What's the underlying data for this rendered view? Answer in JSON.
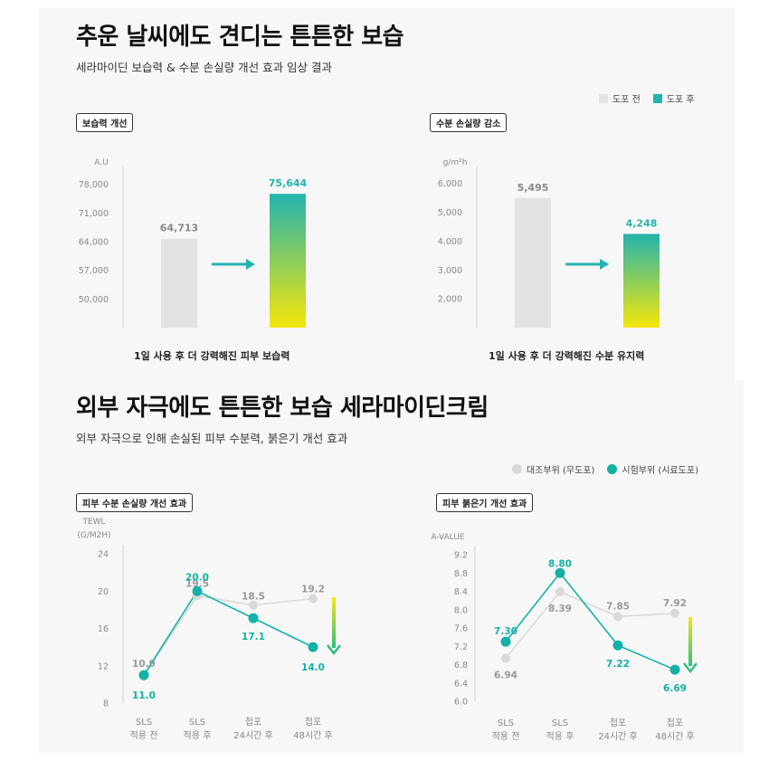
{
  "section1": {
    "title": "추운 날씨에도 견디는 튼튼한 보습",
    "subtitle": "세라마이딘 보습력 & 수분 손실량 개선 효과 임상 결과",
    "legend": {
      "before": "도포 전",
      "after": "도포 후"
    },
    "colors": {
      "before": "#e3e3e3",
      "after_top": "#23b4ae",
      "after_bottom": "#f5e60a"
    }
  },
  "section2": {
    "title": "외부 자극에도 튼튼한 보습 세라마이딘크림",
    "subtitle": "외부 자극으로 인해 손실된 피부 수분력, 붉은기 개선 효과",
    "legend": {
      "control": "대조부위 (무도포)",
      "test": "시험부위 (시료도포)"
    },
    "colors": {
      "control": "#d9d9d9",
      "test": "#13b1a5",
      "arrow_top": "#f3e61a",
      "arrow_bottom": "#2fbf7c"
    }
  },
  "chart_data": [
    {
      "type": "bar",
      "tag": "보습력 개선",
      "ylabel": "A.U",
      "yticks": [
        "78,000",
        "71,000",
        "64,000",
        "57,000",
        "50,000"
      ],
      "ylim": [
        43000,
        81000
      ],
      "categories": [
        "도포 전",
        "도포 후"
      ],
      "values": [
        64713,
        75644
      ],
      "value_labels": [
        "64,713",
        "75,644"
      ],
      "caption": "1일 사용 후 더 강력해진 피부 보습력"
    },
    {
      "type": "bar",
      "tag": "수분 손실량 감소",
      "ylabel": "g/m²h",
      "yticks": [
        "6,000",
        "5,000",
        "4,000",
        "3,000",
        "2,000"
      ],
      "ylim": [
        1000,
        6400
      ],
      "categories": [
        "도포 전",
        "도포 후"
      ],
      "values": [
        5495,
        4248
      ],
      "value_labels": [
        "5,495",
        "4,248"
      ],
      "caption": "1일 사용 후 더 강력해진 수분 유지력"
    },
    {
      "type": "line",
      "tag": "피부 수분 손실량 개선 효과",
      "ylabel": [
        "TEWL",
        "(G/M2H)"
      ],
      "yticks": [
        "24",
        "20",
        "16",
        "12",
        "8"
      ],
      "ylim": [
        8,
        24
      ],
      "categories": [
        [
          "SLS",
          "적용 전"
        ],
        [
          "SLS",
          "적용 후"
        ],
        [
          "첩포",
          "24시간 후"
        ],
        [
          "첩포",
          "48시간 후"
        ]
      ],
      "series": [
        {
          "name": "대조부위 (무도포)",
          "values": [
            10.9,
            19.5,
            18.5,
            19.2
          ],
          "labels": [
            "10.9",
            "19.5",
            "18.5",
            "19.2"
          ]
        },
        {
          "name": "시험부위 (시료도포)",
          "values": [
            11.0,
            20.0,
            17.1,
            14.0
          ],
          "labels": [
            "11.0",
            "20.0",
            "17.1",
            "14.0"
          ]
        }
      ]
    },
    {
      "type": "line",
      "tag": "피부 붉은기 개선 효과",
      "ylabel": [
        "A-VALUE"
      ],
      "yticks": [
        "9.2",
        "8.8",
        "8.4",
        "8.0",
        "7.6",
        "7.2",
        "6.8",
        "6.4",
        "6.0"
      ],
      "ylim": [
        6.0,
        9.2
      ],
      "categories": [
        [
          "SLS",
          "적용 전"
        ],
        [
          "SLS",
          "적용 후"
        ],
        [
          "첩포",
          "24시간 후"
        ],
        [
          "첩포",
          "48시간 후"
        ]
      ],
      "series": [
        {
          "name": "대조부위 (무도포)",
          "values": [
            6.94,
            8.39,
            7.85,
            7.92
          ],
          "labels": [
            "6.94",
            "8.39",
            "7.85",
            "7.92"
          ]
        },
        {
          "name": "시험부위 (시료도포)",
          "values": [
            7.3,
            8.8,
            7.22,
            6.69
          ],
          "labels": [
            "7.30",
            "8.80",
            "7.22",
            "6.69"
          ]
        }
      ]
    }
  ]
}
